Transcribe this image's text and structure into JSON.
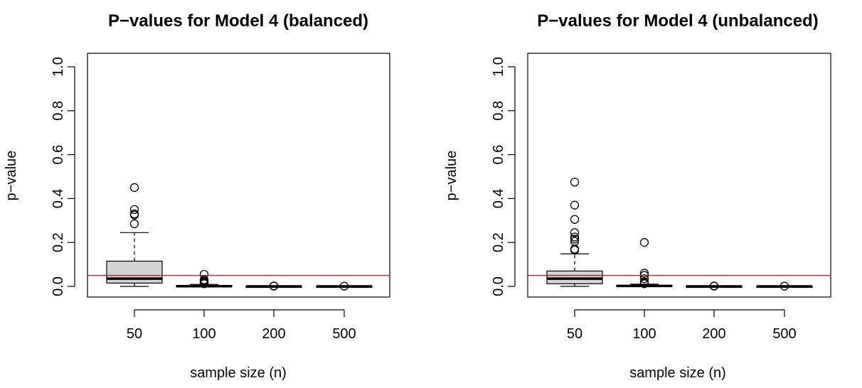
{
  "chart_data": [
    {
      "type": "box",
      "title": "P−values for Model 4 (balanced)",
      "xlabel": "sample size (n)",
      "ylabel": "p−value",
      "ylim": [
        0,
        1
      ],
      "yticks": [
        "0.0",
        "0.2",
        "0.4",
        "0.6",
        "0.8",
        "1.0"
      ],
      "categories": [
        "50",
        "100",
        "200",
        "500"
      ],
      "reference_line": {
        "y": 0.05,
        "color": "#ff0000"
      },
      "boxes": [
        {
          "category": "50",
          "q1": 0.015,
          "median": 0.035,
          "q3": 0.115,
          "whisker_low": 0.0,
          "whisker_high": 0.245,
          "outliers": [
            0.285,
            0.325,
            0.33,
            0.35,
            0.45
          ]
        },
        {
          "category": "100",
          "q1": 0.0,
          "median": 0.001,
          "q3": 0.004,
          "whisker_low": 0.0,
          "whisker_high": 0.009,
          "outliers": [
            0.012,
            0.015,
            0.02,
            0.025,
            0.03,
            0.055
          ]
        },
        {
          "category": "200",
          "q1": 0.0,
          "median": 0.0,
          "q3": 0.0,
          "whisker_low": 0.0,
          "whisker_high": 0.0,
          "outliers": [
            0.001,
            0.002
          ]
        },
        {
          "category": "500",
          "q1": 0.0,
          "median": 0.0,
          "q3": 0.0,
          "whisker_low": 0.0,
          "whisker_high": 0.0,
          "outliers": [
            0.001
          ]
        }
      ]
    },
    {
      "type": "box",
      "title": "P−values for Model 4 (unbalanced)",
      "xlabel": "sample size (n)",
      "ylabel": "p−value",
      "ylim": [
        0,
        1
      ],
      "yticks": [
        "0.0",
        "0.2",
        "0.4",
        "0.6",
        "0.8",
        "1.0"
      ],
      "categories": [
        "50",
        "100",
        "200",
        "500"
      ],
      "reference_line": {
        "y": 0.05,
        "color": "#ff0000"
      },
      "boxes": [
        {
          "category": "50",
          "q1": 0.012,
          "median": 0.035,
          "q3": 0.07,
          "whisker_low": 0.0,
          "whisker_high": 0.148,
          "outliers": [
            0.165,
            0.17,
            0.205,
            0.215,
            0.225,
            0.245,
            0.305,
            0.37,
            0.475
          ]
        },
        {
          "category": "100",
          "q1": 0.0,
          "median": 0.002,
          "q3": 0.005,
          "whisker_low": 0.0,
          "whisker_high": 0.01,
          "outliers": [
            0.012,
            0.015,
            0.02,
            0.035,
            0.05,
            0.06,
            0.2
          ]
        },
        {
          "category": "200",
          "q1": 0.0,
          "median": 0.0,
          "q3": 0.0,
          "whisker_low": 0.0,
          "whisker_high": 0.0,
          "outliers": [
            0.001,
            0.002
          ]
        },
        {
          "category": "500",
          "q1": 0.0,
          "median": 0.0,
          "q3": 0.0,
          "whisker_low": 0.0,
          "whisker_high": 0.0,
          "outliers": [
            0.001
          ]
        }
      ]
    }
  ]
}
